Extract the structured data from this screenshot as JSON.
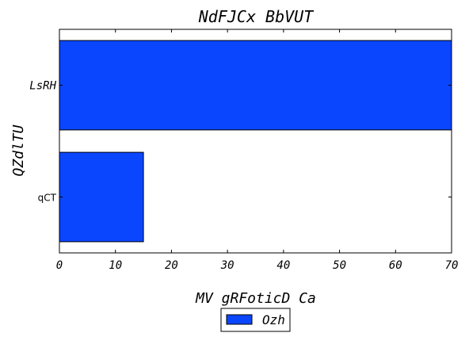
{
  "chart_data": {
    "type": "bar",
    "orientation": "horizontal",
    "title": "NdFJCx BbVUT",
    "xlabel": "MV gRFoticD Ca",
    "ylabel": "QZdlTU",
    "categories": [
      "LsRH",
      "qCT"
    ],
    "series": [
      {
        "name": "Ozh",
        "values": [
          70,
          15
        ],
        "color": "#0b46ff"
      }
    ],
    "xlim": [
      0,
      70
    ],
    "xticks": [
      "0",
      "10",
      "20",
      "30",
      "40",
      "50",
      "60",
      "70"
    ],
    "grid": false,
    "legend": {
      "position": "bottom-center"
    }
  }
}
